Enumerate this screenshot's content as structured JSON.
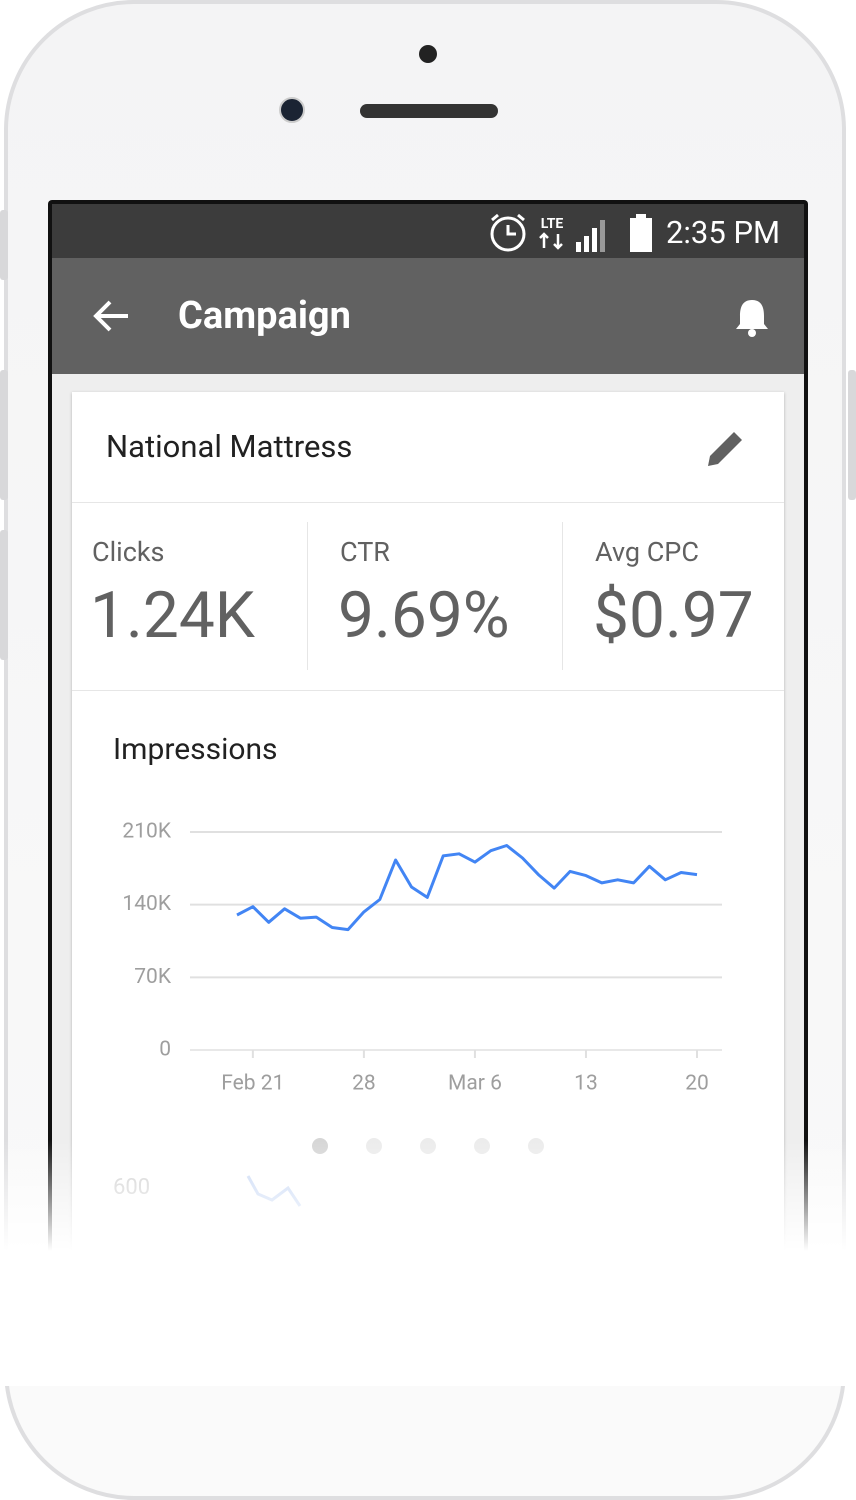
{
  "status_bar": {
    "network": "LTE",
    "time": "2:35 PM"
  },
  "app_bar": {
    "title": "Campaign"
  },
  "card": {
    "title": "National Mattress",
    "metrics": [
      {
        "label": "Clicks",
        "value": "1.24K"
      },
      {
        "label": "CTR",
        "value": "9.69%"
      },
      {
        "label": "Avg CPC",
        "value": "$0.97"
      }
    ]
  },
  "chart_data": {
    "type": "line",
    "title": "Impressions",
    "categories": [
      null,
      "Feb 21",
      null,
      null,
      null,
      null,
      null,
      null,
      "28",
      null,
      null,
      null,
      null,
      null,
      null,
      "Mar 6",
      null,
      null,
      null,
      null,
      null,
      null,
      "13",
      null,
      null,
      null,
      null,
      null,
      null,
      "20"
    ],
    "values": [
      130000,
      138000,
      123000,
      136000,
      127000,
      128000,
      118000,
      116000,
      133000,
      145000,
      183000,
      157000,
      147000,
      187000,
      189000,
      181000,
      192000,
      197000,
      185000,
      169000,
      156000,
      172000,
      168000,
      161000,
      164000,
      161000,
      177000,
      164000,
      171000,
      169000
    ],
    "color": "#4285f4",
    "ylim": [
      0,
      210000
    ],
    "yticks": [
      0,
      {
        "value": 70000,
        "label": "70K"
      },
      {
        "value": 140000,
        "label": "140K"
      },
      {
        "value": 210000,
        "label": "210K"
      }
    ],
    "grid": true
  },
  "next_chart": {
    "tick": "600"
  }
}
